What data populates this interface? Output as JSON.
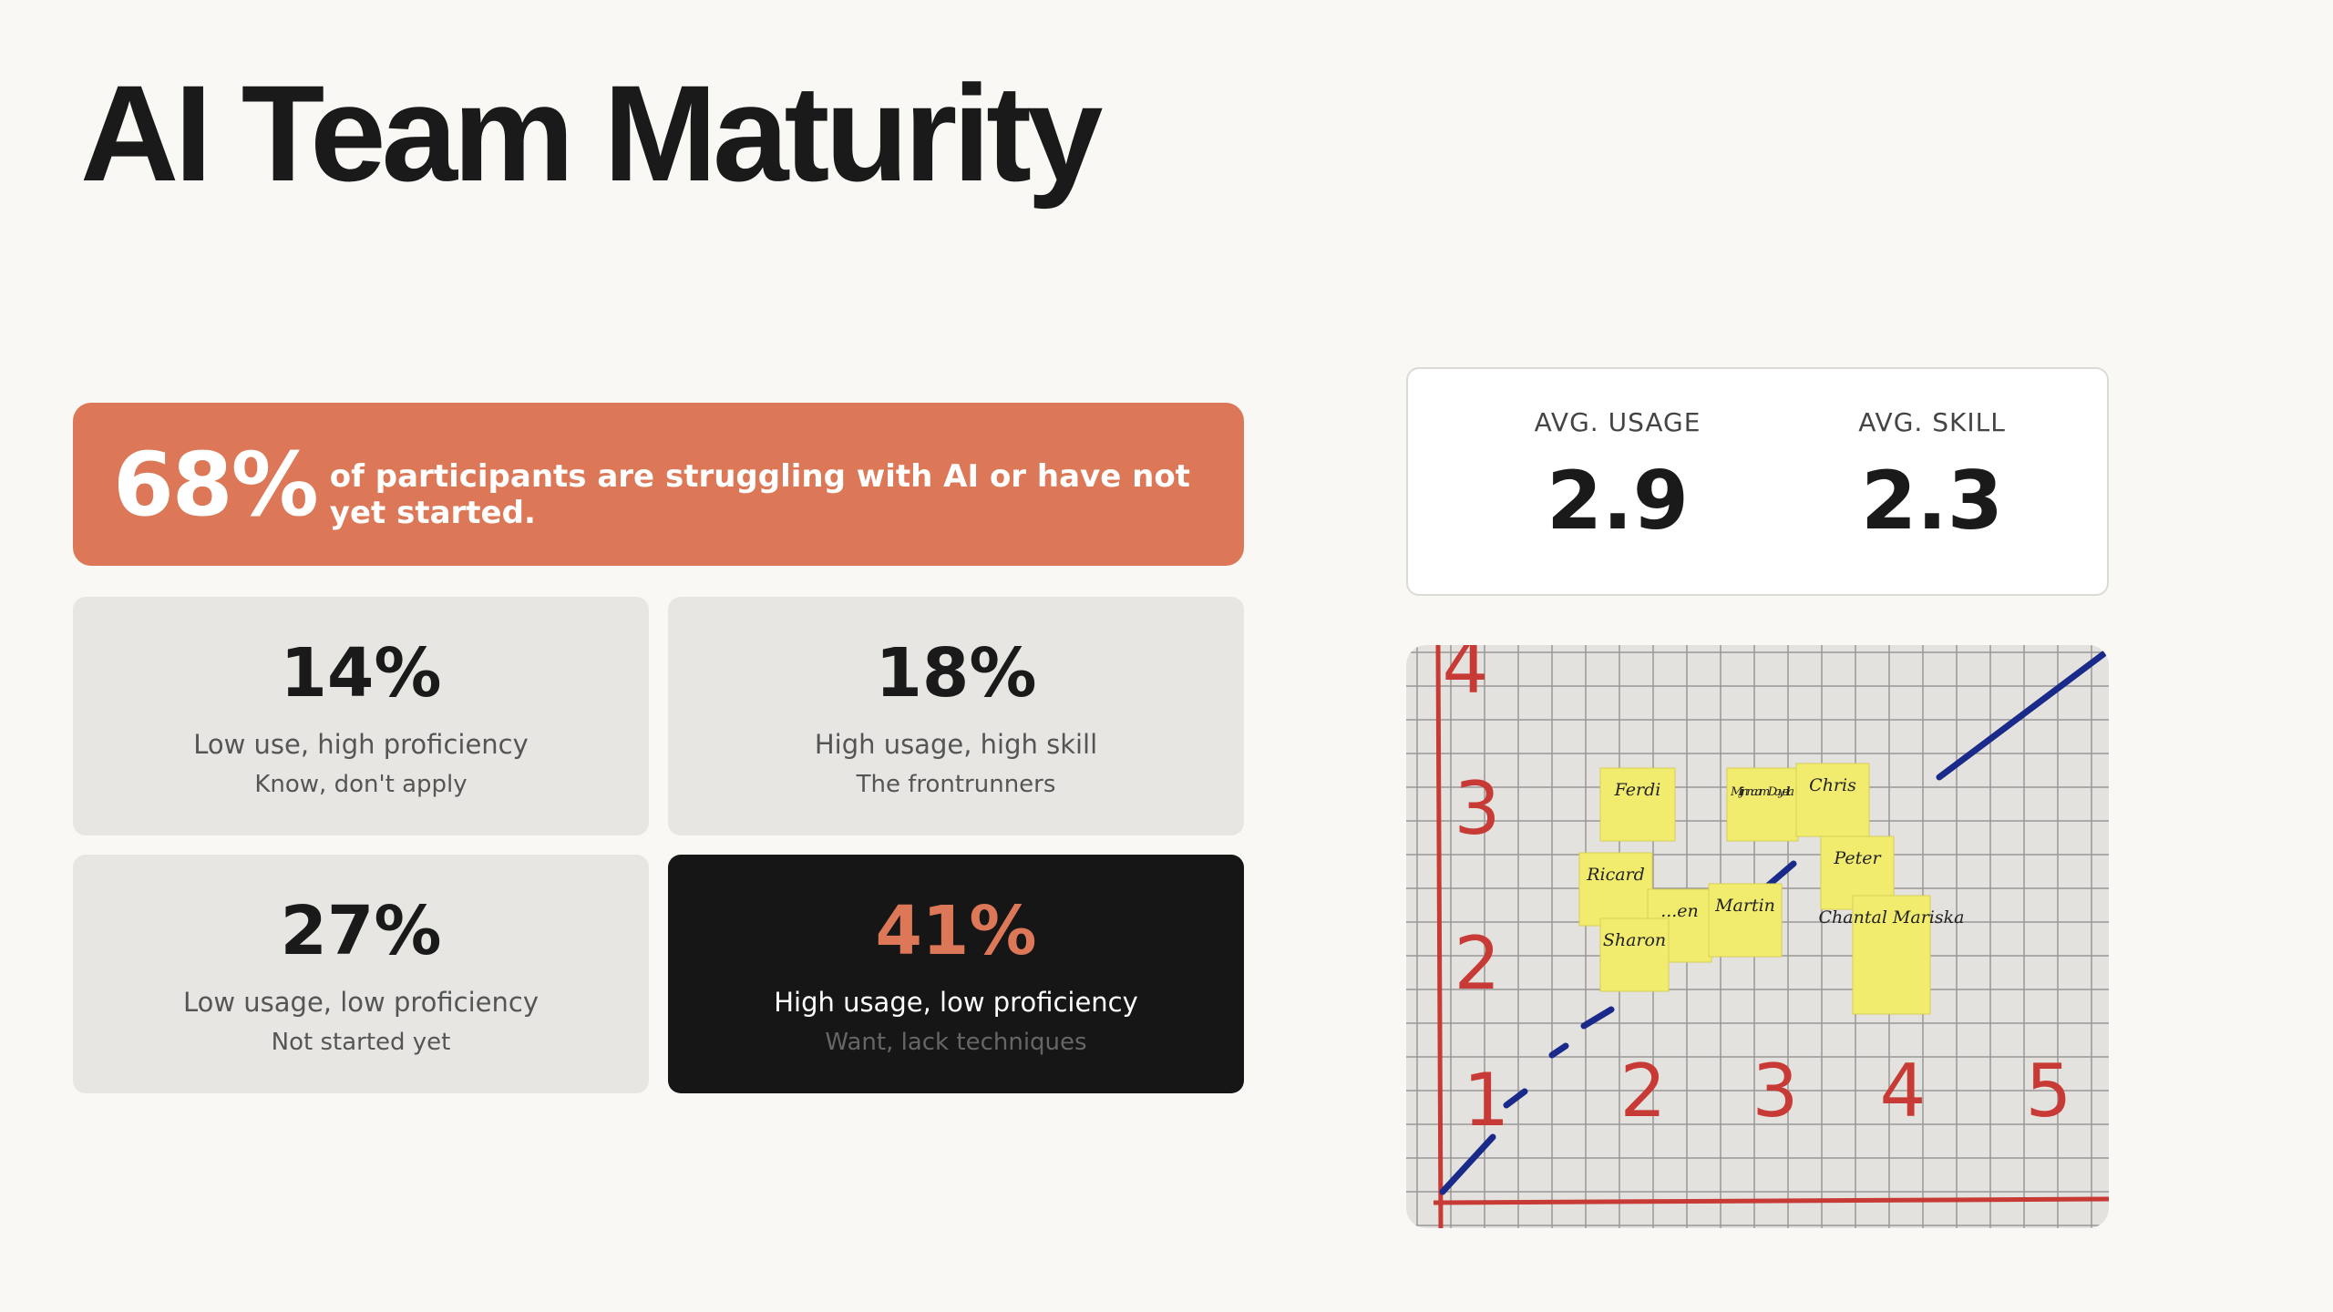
{
  "title": "AI Team Maturity",
  "banner": {
    "value": "68%",
    "text": "of participants are struggling with AI or have not yet started."
  },
  "stats": [
    {
      "label": "AVG. USAGE",
      "value": "2.9"
    },
    {
      "label": "AVG. SKILL",
      "value": "2.3"
    }
  ],
  "quadrants": [
    {
      "value": "14%",
      "title": "Low use, high proficiency",
      "subtitle": "Know, don't apply"
    },
    {
      "value": "18%",
      "title": "High usage, high skill",
      "subtitle": "The frontrunners"
    },
    {
      "value": "27%",
      "title": "Low usage, low proficiency",
      "subtitle": "Not started yet"
    },
    {
      "value": "41%",
      "title": "High usage, low proficiency",
      "subtitle": "Want, lack techniques"
    }
  ],
  "photo": {
    "y_axis": [
      "4",
      "3",
      "2",
      "1"
    ],
    "x_axis": [
      "2",
      "3",
      "4",
      "5"
    ],
    "notes": [
      "Ferdi",
      "Mijn naam Dayella",
      "Chris",
      "Ricard",
      "...en",
      "Martin",
      "Sharon",
      "Peter",
      "Chantal Mariska"
    ]
  }
}
